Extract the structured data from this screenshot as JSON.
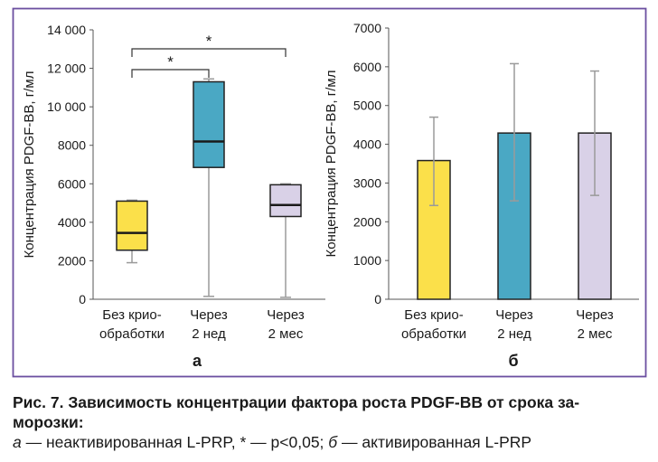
{
  "frame_color": "#6b4fa0",
  "panels": {
    "a": {
      "label": "а"
    },
    "b": {
      "label": "б"
    }
  },
  "significance": {
    "marker": "*",
    "brackets": [
      {
        "from": "Без крио-обработки",
        "to": "Через 2 нед"
      },
      {
        "from": "Без крио-обработки",
        "to": "Через 2 мес"
      }
    ]
  },
  "caption": {
    "title": "Рис. 7. Зависимость концентрации фактора роста PDGF-BB от срока заморозки:",
    "title_line1": "Рис. 7. Зависимость концентрации фактора роста PDGF-BB от срока за-",
    "title_line2": "морозки:",
    "legend_a_letter": "а",
    "legend_a_text": " — неактивированная L-PRP, * — p<0,05; ",
    "legend_b_letter": "б",
    "legend_b_text": " — активированная L-PRP"
  },
  "chart_data": [
    {
      "type": "box",
      "ylabel": "Концентрация PDGF-BB, г/мл",
      "ylim": [
        0,
        14000
      ],
      "yticks": [
        0,
        2000,
        4000,
        6000,
        8000,
        10000,
        12000,
        14000
      ],
      "ytick_labels": [
        "0",
        "2000",
        "4000",
        "6000",
        "8000",
        "10 000",
        "12 000",
        "14 000"
      ],
      "grid": false,
      "categories": [
        {
          "line1": "Без крио-",
          "line2": "обработки"
        },
        {
          "line1": "Через",
          "line2": "2 нед"
        },
        {
          "line1": "Через",
          "line2": "2 мес"
        }
      ],
      "boxes": [
        {
          "min": 1900,
          "q1": 2550,
          "median": 3450,
          "q3": 5100,
          "max": 5150,
          "color": "#fbe04a"
        },
        {
          "min": 150,
          "q1": 6850,
          "median": 8200,
          "q3": 11300,
          "max": 11450,
          "color": "#4aa8c4"
        },
        {
          "min": 100,
          "q1": 4300,
          "median": 4900,
          "q3": 5950,
          "max": 6000,
          "color": "#d9d1e7"
        }
      ]
    },
    {
      "type": "bar",
      "ylabel": "Концентрация PDGF-BB, г/мл",
      "ylim": [
        0,
        7000
      ],
      "yticks": [
        0,
        1000,
        2000,
        3000,
        4000,
        5000,
        6000,
        7000
      ],
      "ytick_labels": [
        "0",
        "1000",
        "2000",
        "3000",
        "4000",
        "5000",
        "6000",
        "7000"
      ],
      "grid": false,
      "categories": [
        {
          "line1": "Без крио-",
          "line2": "обработки"
        },
        {
          "line1": "Через",
          "line2": "2 нед"
        },
        {
          "line1": "Через",
          "line2": "2 мес"
        }
      ],
      "values": [
        3580,
        4290,
        4290
      ],
      "error_low": [
        2420,
        2540,
        2680
      ],
      "error_high": [
        4700,
        6080,
        5890
      ],
      "colors": [
        "#fbe04a",
        "#4aa8c4",
        "#d9d1e7"
      ]
    }
  ]
}
